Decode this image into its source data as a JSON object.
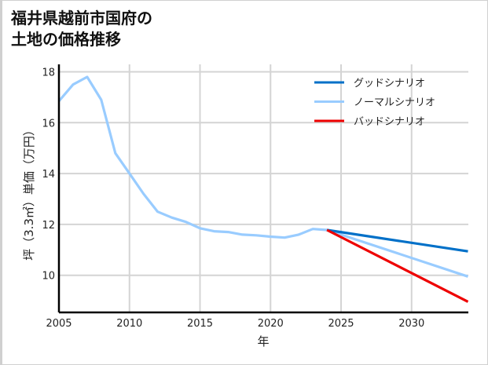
{
  "title_lines": [
    "福井県越前市国府の",
    "土地の価格推移"
  ],
  "chart_data": {
    "type": "line",
    "title": "福井県越前市国府の土地の価格推移",
    "xlabel": "年",
    "ylabel": "坪（3.3㎡）単価（万円）",
    "xlim": [
      2005,
      2034
    ],
    "ylim": [
      8.6,
      18.3
    ],
    "x_ticks": [
      2005,
      2010,
      2015,
      2020,
      2025,
      2030
    ],
    "y_ticks": [
      10,
      12,
      14,
      16,
      18
    ],
    "grid": true,
    "legend_position": "upper right",
    "series": [
      {
        "name": "グッドシナリオ",
        "color": "#0070c8",
        "x": [
          2024,
          2034
        ],
        "values": [
          11.78,
          10.94
        ]
      },
      {
        "name": "ノーマルシナリオ",
        "color": "#99ccff",
        "x": [
          2005,
          2006,
          2007,
          2008,
          2009,
          2010,
          2011,
          2012,
          2013,
          2014,
          2015,
          2016,
          2017,
          2018,
          2019,
          2020,
          2021,
          2022,
          2023,
          2024,
          2034
        ],
        "values": [
          16.85,
          17.5,
          17.8,
          16.9,
          14.8,
          14.0,
          13.2,
          12.5,
          12.27,
          12.1,
          11.85,
          11.73,
          11.7,
          11.6,
          11.57,
          11.52,
          11.48,
          11.6,
          11.82,
          11.78,
          9.95
        ]
      },
      {
        "name": "バッドシナリオ",
        "color": "#ee0000",
        "x": [
          2024,
          2034
        ],
        "values": [
          11.78,
          8.96
        ]
      }
    ]
  }
}
